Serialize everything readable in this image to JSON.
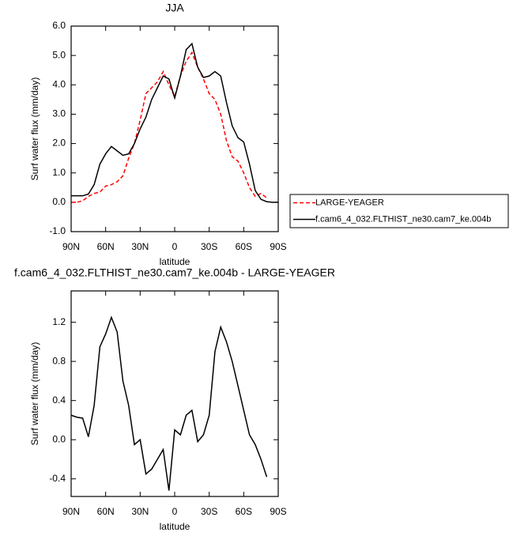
{
  "chart_data": [
    {
      "type": "line",
      "title": "JJA",
      "xlabel": "latitude",
      "ylabel": "Surf water flux (mm/day)",
      "x": [
        90,
        85,
        80,
        75,
        70,
        65,
        60,
        55,
        50,
        45,
        40,
        35,
        30,
        25,
        20,
        15,
        10,
        5,
        0,
        -5,
        -10,
        -15,
        -20,
        -25,
        -30,
        -35,
        -40,
        -45,
        -50,
        -55,
        -60,
        -65,
        -70,
        -75,
        -80,
        -85,
        -90
      ],
      "series": [
        {
          "name": "LARGE-YEAGER",
          "color": "#ff0000",
          "style": "dashed",
          "values": [
            0,
            0,
            0.05,
            0.2,
            0.3,
            0.35,
            0.55,
            0.6,
            0.7,
            0.9,
            1.5,
            2.0,
            2.8,
            3.7,
            3.9,
            4.1,
            4.45,
            4.0,
            3.6,
            4.3,
            4.8,
            5.1,
            4.6,
            4.2,
            3.7,
            3.5,
            3.0,
            2.1,
            1.55,
            1.4,
            1.0,
            0.5,
            0.2,
            0.3,
            0.15,
            null,
            null
          ]
        },
        {
          "name": "f.cam6_4_032.FLTHIST_ne30.cam7_ke.004b",
          "color": "#000000",
          "style": "solid",
          "values": [
            0.22,
            0.22,
            0.22,
            0.28,
            0.6,
            1.3,
            1.65,
            1.9,
            1.75,
            1.6,
            1.65,
            2.0,
            2.5,
            2.9,
            3.5,
            3.9,
            4.3,
            4.2,
            3.55,
            4.3,
            5.2,
            5.4,
            4.6,
            4.25,
            4.3,
            4.45,
            4.3,
            3.4,
            2.6,
            2.2,
            2.05,
            1.3,
            0.4,
            0.1,
            0.02,
            0,
            0
          ]
        }
      ],
      "xlim": [
        90,
        -90
      ],
      "xticks": [
        {
          "value": 90,
          "label": "90N"
        },
        {
          "value": 60,
          "label": "60N"
        },
        {
          "value": 30,
          "label": "30N"
        },
        0,
        {
          "value": -30,
          "label": "30S"
        },
        {
          "value": -60,
          "label": "60S"
        },
        {
          "value": -90,
          "label": "90S"
        }
      ],
      "ylim": [
        -1,
        6
      ],
      "yticks": [
        {
          "value": -1,
          "label": "-1.0"
        },
        {
          "value": 0,
          "label": "0.0"
        },
        {
          "value": 1,
          "label": "1.0"
        },
        {
          "value": 2,
          "label": "2.0"
        },
        {
          "value": 3,
          "label": "3.0"
        },
        {
          "value": 4,
          "label": "4.0"
        },
        {
          "value": 5,
          "label": "5.0"
        },
        {
          "value": 6,
          "label": "6.0"
        }
      ],
      "legend": "right"
    },
    {
      "type": "line",
      "title": "f.cam6_4_032.FLTHIST_ne30.cam7_ke.004b - LARGE-YEAGER",
      "xlabel": "latitude",
      "ylabel": "Surf water flux (mm/day)",
      "x": [
        90,
        85,
        80,
        75,
        70,
        65,
        60,
        55,
        50,
        45,
        40,
        35,
        30,
        25,
        20,
        15,
        10,
        5,
        0,
        -5,
        -10,
        -15,
        -20,
        -25,
        -30,
        -35,
        -40,
        -45,
        -50,
        -55,
        -60,
        -65,
        -70,
        -75,
        -80
      ],
      "series": [
        {
          "color": "#000000",
          "style": "solid",
          "values": [
            0.25,
            0.23,
            0.22,
            0.03,
            0.35,
            0.95,
            1.08,
            1.25,
            1.1,
            0.6,
            0.35,
            -0.05,
            0,
            -0.35,
            -0.3,
            -0.2,
            -0.1,
            -0.52,
            0.1,
            0.05,
            0.25,
            0.3,
            -0.02,
            0.05,
            0.25,
            0.9,
            1.15,
            1.0,
            0.8,
            0.55,
            0.3,
            0.05,
            -0.05,
            -0.2,
            -0.38
          ]
        }
      ],
      "xlim": [
        90,
        -90
      ],
      "xticks": [
        {
          "value": 90,
          "label": "90N"
        },
        {
          "value": 60,
          "label": "60N"
        },
        {
          "value": 30,
          "label": "30N"
        },
        0,
        {
          "value": -30,
          "label": "30S"
        },
        {
          "value": -60,
          "label": "60S"
        },
        {
          "value": -90,
          "label": "90S"
        }
      ],
      "ylim": [
        -0.58,
        1.52
      ],
      "yticks": [
        {
          "value": -0.4,
          "label": "-0.4"
        },
        {
          "value": 0,
          "label": "0.0"
        },
        {
          "value": 0.4,
          "label": "0.4"
        },
        {
          "value": 0.8,
          "label": "0.8"
        },
        {
          "value": 1.2,
          "label": "1.2"
        }
      ]
    }
  ]
}
